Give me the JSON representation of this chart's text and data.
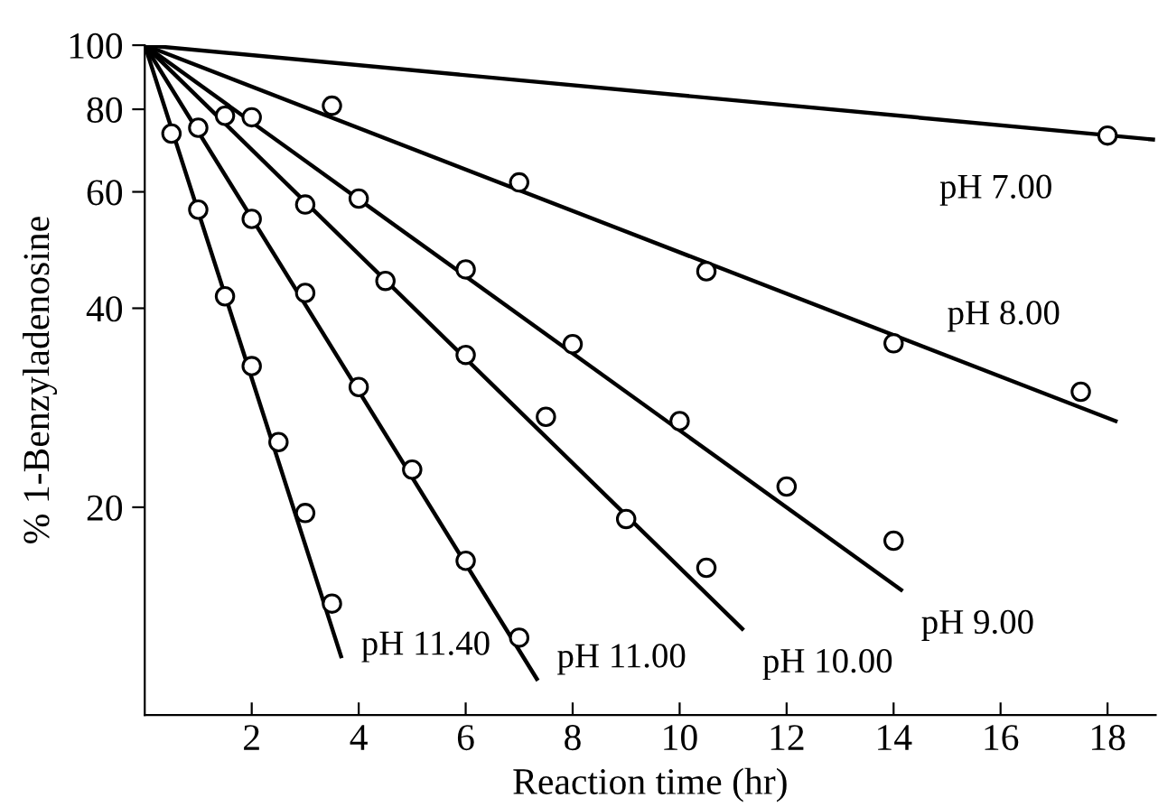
{
  "chart_data": {
    "type": "scatter",
    "xlabel": "Reaction time (hr)",
    "ylabel": "% 1-Benzyladenosine",
    "log": "y",
    "xlim": [
      0,
      18.9
    ],
    "ylim": [
      9.7,
      100
    ],
    "xticks": [
      2,
      4,
      6,
      8,
      10,
      12,
      14,
      16,
      18
    ],
    "yticks": [
      20,
      40,
      60,
      80,
      100
    ],
    "grid": false,
    "legend": false,
    "marker": "circle",
    "series": [
      {
        "type": "line",
        "name": "pH 7.00",
        "color": "#000000",
        "marker": "none",
        "x": [
          0,
          18.85
        ],
        "values": [
          100,
          72
        ]
      },
      {
        "type": "line",
        "name": "pH 8.00",
        "color": "#000000",
        "marker": "none",
        "x": [
          0,
          18.15
        ],
        "values": [
          100,
          27
        ]
      },
      {
        "type": "line",
        "name": "pH 9.00",
        "color": "#000000",
        "marker": "none",
        "x": [
          0,
          14.14
        ],
        "values": [
          100,
          15
        ]
      },
      {
        "type": "line",
        "name": "pH 10.00",
        "color": "#000000",
        "marker": "none",
        "x": [
          0,
          11.17
        ],
        "values": [
          100,
          13.1
        ]
      },
      {
        "type": "line",
        "name": "pH 11.00",
        "color": "#000000",
        "marker": "none",
        "x": [
          0,
          7.33
        ],
        "values": [
          100,
          11
        ]
      },
      {
        "type": "line",
        "name": "pH 11.40",
        "color": "#000000",
        "marker": "none",
        "x": [
          0,
          3.67
        ],
        "values": [
          100,
          11.9
        ]
      },
      {
        "color": "#000000",
        "x": [
          18
        ],
        "values": [
          73
        ]
      },
      {
        "color": "#000000",
        "x": [
          3.5,
          7,
          10.5,
          14,
          17.5
        ],
        "values": [
          81,
          62,
          45.5,
          35.4,
          29.9
        ]
      },
      {
        "color": "#000000",
        "x": [
          2,
          4,
          6,
          8,
          10,
          12,
          14
        ],
        "values": [
          77.8,
          58.6,
          45.8,
          35.3,
          27,
          21.5,
          17.8
        ]
      },
      {
        "color": "#000000",
        "x": [
          1.5,
          3,
          4.5,
          6,
          7.5,
          9,
          10.5
        ],
        "values": [
          78.2,
          57.4,
          44,
          34,
          27.4,
          19.2,
          16.2
        ]
      },
      {
        "color": "#000000",
        "x": [
          1,
          2,
          3,
          4,
          5,
          6,
          7
        ],
        "values": [
          75,
          54.6,
          42.2,
          30.4,
          22.8,
          16.6,
          12.7
        ]
      },
      {
        "color": "#000000",
        "x": [
          0.5,
          1,
          1.5,
          2,
          2.5,
          3,
          3.5
        ],
        "values": [
          73.5,
          56.4,
          41.7,
          32.7,
          25.1,
          19.6,
          14.3
        ]
      }
    ]
  }
}
